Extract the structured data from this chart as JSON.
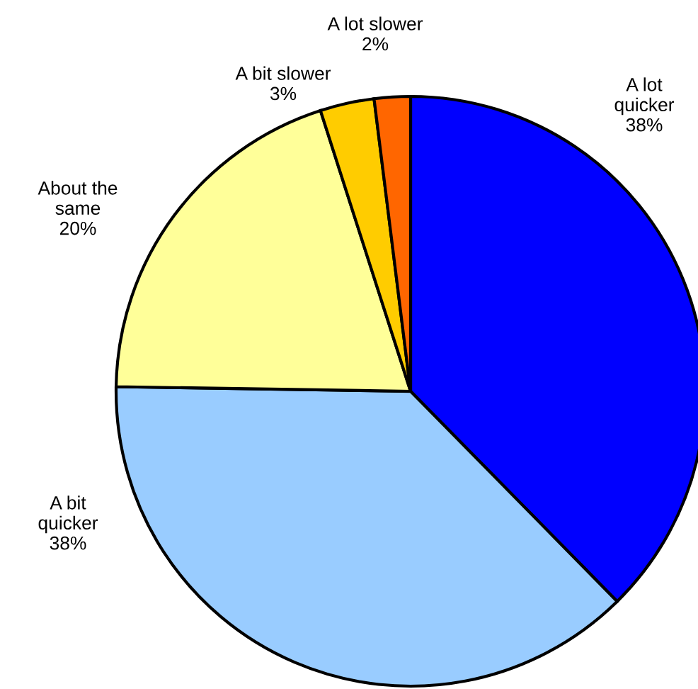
{
  "chart_data": {
    "type": "pie",
    "categories": [
      "A lot\nquicker",
      "A bit\nquicker",
      "About the\nsame",
      "A bit slower",
      "A lot slower"
    ],
    "values": [
      38,
      38,
      20,
      3,
      2
    ],
    "value_labels": [
      "38%",
      "38%",
      "20%",
      "3%",
      "2%"
    ],
    "colors": [
      "#0000ff",
      "#99ccff",
      "#ffff99",
      "#ffcc00",
      "#ff6600"
    ],
    "legend": false
  }
}
